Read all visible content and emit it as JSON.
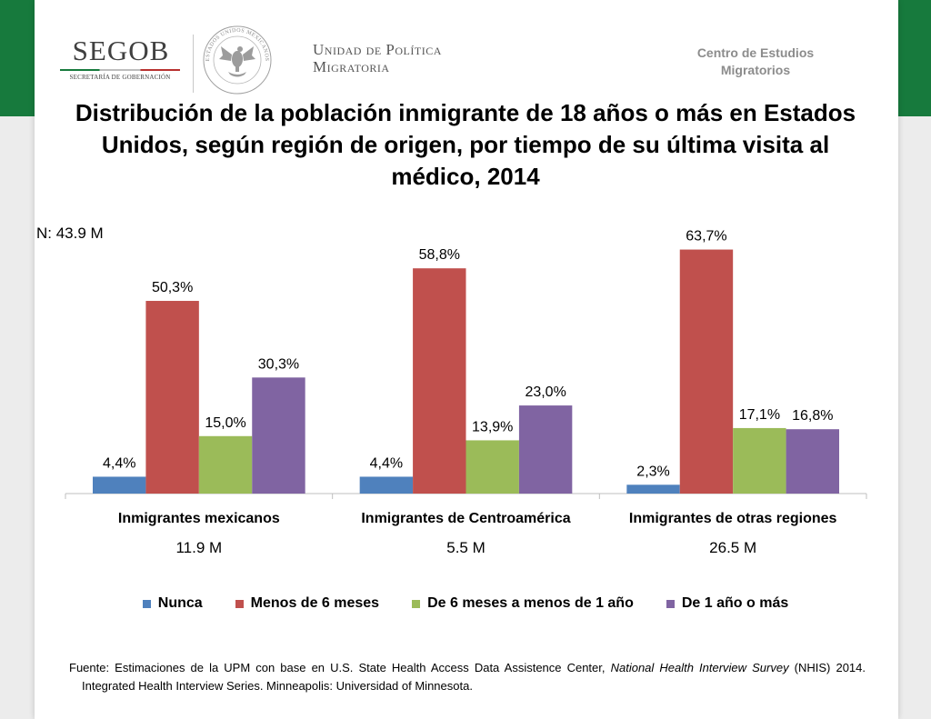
{
  "header": {
    "logo_text": "SEGOB",
    "logo_subtext": "SECRETARÍA DE GOBERNACIÓN",
    "seal_text": "ESTADOS UNIDOS MEXICANOS",
    "unit_line1": "Unidad de Política",
    "unit_line2": "Migratoria",
    "center_line1": "Centro de Estudios",
    "center_line2": "Migratorios"
  },
  "colors": {
    "green_band": "#177a3d",
    "header_gray": "#8c8c8c",
    "axis": "#bfbfbf"
  },
  "chart_data": {
    "type": "bar",
    "title": "Distribución de la población inmigrante de 18 años o más en Estados Unidos, según región de origen, por tiempo de su última visita al médico, 2014",
    "note": "N: 43.9 M",
    "xlabel": "",
    "ylabel": "",
    "categories": [
      "Inmigrantes mexicanos",
      "Inmigrantes de Centroamérica",
      "Inmigrantes de otras regiones"
    ],
    "category_totals": [
      "11.9 M",
      "5.5 M",
      "26.5 M"
    ],
    "series": [
      {
        "name": "Nunca",
        "color": "#4F81BD",
        "values": [
          4.4,
          4.4,
          2.3
        ],
        "labels": [
          "4,4%",
          "4,4%",
          "2,3%"
        ]
      },
      {
        "name": "Menos de 6 meses",
        "color": "#C0504D",
        "values": [
          50.3,
          58.8,
          63.7
        ],
        "labels": [
          "50,3%",
          "58,8%",
          "63,7%"
        ]
      },
      {
        "name": "De 6 meses a menos de 1 año",
        "color": "#9BBB59",
        "values": [
          15.0,
          13.9,
          17.1
        ],
        "labels": [
          "15,0%",
          "13,9%",
          "17,1%"
        ]
      },
      {
        "name": "De 1 año o más",
        "color": "#8064A2",
        "values": [
          30.3,
          23.0,
          16.8
        ],
        "labels": [
          "30,3%",
          "23,0%",
          "16,8%"
        ]
      }
    ],
    "ylim": [
      0,
      70
    ],
    "y_axis_visible": false,
    "grid": false,
    "legend": "bottom"
  },
  "source": {
    "prefix": "Fuente: Estimaciones de la UPM con base en U.S. State Health Access Data Assistence Center, ",
    "italic": "National Health Interview Survey",
    "suffix": " (NHIS) 2014. Integrated Health Interview Series. Minneapolis: Universidad of Minnesota."
  }
}
